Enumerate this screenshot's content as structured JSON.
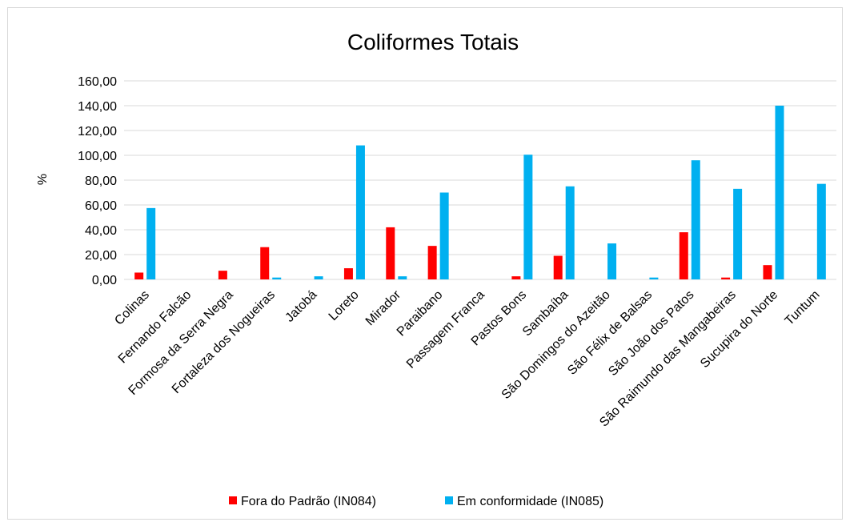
{
  "chart_data": {
    "type": "bar",
    "title": "Coliformes  Totais",
    "xlabel": "",
    "ylabel": "%",
    "ylim": [
      0,
      160
    ],
    "yticks": [
      "0,00",
      "20,00",
      "40,00",
      "60,00",
      "80,00",
      "100,00",
      "120,00",
      "140,00",
      "160,00"
    ],
    "grid": true,
    "legend_position": "bottom",
    "categories": [
      "Colinas",
      "Fernando Falcão",
      "Formosa da Serra Negra",
      "Fortaleza dos Nogueiras",
      "Jatobá",
      "Loreto",
      "Mirador",
      "Paraibano",
      "Passagem Franca",
      "Pastos Bons",
      "Sambaíba",
      "São Domingos do Azeitão",
      "São Félix de Balsas",
      "São João dos Patos",
      "São Raimundo das Mangabeiras",
      "Sucupira do Norte",
      "Tuntum"
    ],
    "series": [
      {
        "name": "Fora do Padrão (IN084)",
        "color": "#ff0000",
        "values": [
          5.5,
          0,
          7,
          26,
          0,
          9,
          42,
          27,
          0,
          2.5,
          19,
          0,
          0,
          38,
          1.5,
          11.5,
          0
        ]
      },
      {
        "name": "Em conformidade (IN085)",
        "color": "#00b0f0",
        "values": [
          57.5,
          0,
          0,
          1.5,
          2.5,
          108,
          2.5,
          70,
          0,
          100.5,
          75,
          29,
          1.5,
          96,
          73,
          140,
          77
        ]
      }
    ]
  }
}
